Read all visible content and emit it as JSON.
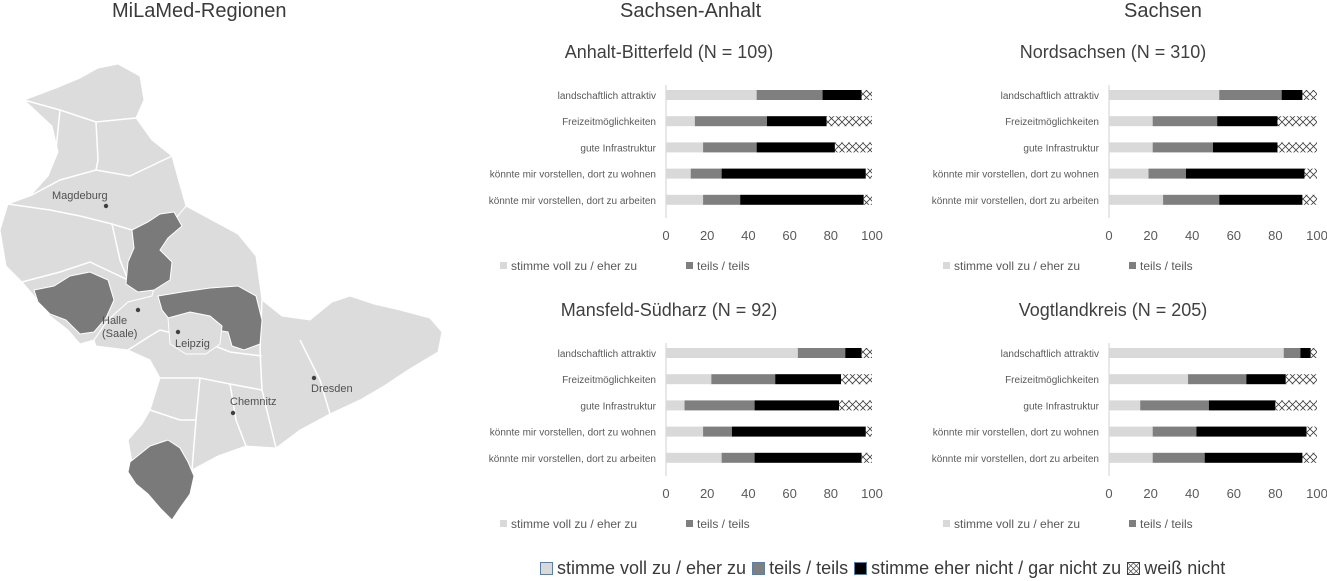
{
  "headings": {
    "map": "MiLaMed-Regionen",
    "sachsen_anhalt": "Sachsen-Anhalt",
    "sachsen": "Sachsen"
  },
  "map": {
    "cities": [
      "Magdeburg",
      "Halle\n(Saale)",
      "Leipzig",
      "Chemnitz",
      "Dresden"
    ],
    "colors": {
      "state": "#dcdcdc",
      "highlight": "#7a7a7a",
      "border": "#ffffff",
      "dot": "#404040"
    }
  },
  "legend": {
    "labels": [
      "stimme voll zu / eher zu",
      "teils / teils",
      "stimme eher nicht / gar nicht zu",
      "weiß nicht"
    ],
    "colors": [
      "#d9d9d9",
      "#7f7f7f",
      "#000000",
      "#ffffff"
    ]
  },
  "chart_data": [
    {
      "type": "bar",
      "orientation": "horizontal",
      "stacked": true,
      "title": "Anhalt-Bitterfeld (N = 109)",
      "categories": [
        "landschaftlich attraktiv",
        "Freizeitmöglichkeiten",
        "gute Infrastruktur",
        "könnte mir vorstellen, dort zu wohnen",
        "könnte mir vorstellen, dort zu arbeiten"
      ],
      "series": [
        {
          "name": "stimme voll zu / eher zu",
          "values": [
            44,
            14,
            18,
            12,
            18
          ]
        },
        {
          "name": "teils / teils",
          "values": [
            32,
            35,
            26,
            15,
            18
          ]
        },
        {
          "name": "stimme eher nicht / gar nicht zu",
          "values": [
            19,
            29,
            38,
            70,
            60
          ]
        },
        {
          "name": "weiß nicht",
          "values": [
            5,
            22,
            18,
            3,
            4
          ]
        }
      ],
      "xlim": [
        0,
        100
      ],
      "xticks": [
        0,
        20,
        40,
        60,
        80,
        100
      ],
      "legend_position": "bottom"
    },
    {
      "type": "bar",
      "orientation": "horizontal",
      "stacked": true,
      "title": "Nordsachsen (N = 310)",
      "categories": [
        "landschaftlich attraktiv",
        "Freizeitmöglichkeiten",
        "gute Infrastruktur",
        "könnte mir vorstellen, dort zu wohnen",
        "könnte mir vorstellen, dort zu arbeiten"
      ],
      "series": [
        {
          "name": "stimme voll zu / eher zu",
          "values": [
            53,
            21,
            21,
            19,
            26
          ]
        },
        {
          "name": "teils / teils",
          "values": [
            30,
            31,
            29,
            18,
            27
          ]
        },
        {
          "name": "stimme eher nicht / gar nicht zu",
          "values": [
            10,
            29,
            31,
            57,
            40
          ]
        },
        {
          "name": "weiß nicht",
          "values": [
            7,
            19,
            19,
            6,
            7
          ]
        }
      ],
      "xlim": [
        0,
        100
      ],
      "xticks": [
        0,
        20,
        40,
        60,
        80,
        100
      ],
      "legend_position": "bottom"
    },
    {
      "type": "bar",
      "orientation": "horizontal",
      "stacked": true,
      "title": "Mansfeld-Südharz (N = 92)",
      "categories": [
        "landschaftlich attraktiv",
        "Freizeitmöglichkeiten",
        "gute Infrastruktur",
        "könnte mir vorstellen, dort zu wohnen",
        "könnte mir vorstellen, dort zu arbeiten"
      ],
      "series": [
        {
          "name": "stimme voll zu / eher zu",
          "values": [
            64,
            22,
            9,
            18,
            27
          ]
        },
        {
          "name": "teils / teils",
          "values": [
            23,
            31,
            34,
            14,
            16
          ]
        },
        {
          "name": "stimme eher nicht / gar nicht zu",
          "values": [
            8,
            32,
            41,
            65,
            52
          ]
        },
        {
          "name": "weiß nicht",
          "values": [
            5,
            15,
            16,
            3,
            5
          ]
        }
      ],
      "xlim": [
        0,
        100
      ],
      "xticks": [
        0,
        20,
        40,
        60,
        80,
        100
      ],
      "legend_position": "bottom"
    },
    {
      "type": "bar",
      "orientation": "horizontal",
      "stacked": true,
      "title": "Vogtlandkreis (N = 205)",
      "categories": [
        "landschaftlich attraktiv",
        "Freizeitmöglichkeiten",
        "gute Infrastruktur",
        "könnte mir vorstellen, dort zu wohnen",
        "könnte mir vorstellen, dort zu arbeiten"
      ],
      "series": [
        {
          "name": "stimme voll zu / eher zu",
          "values": [
            84,
            38,
            15,
            21,
            21
          ]
        },
        {
          "name": "teils / teils",
          "values": [
            8,
            28,
            33,
            21,
            25
          ]
        },
        {
          "name": "stimme eher nicht / gar nicht zu",
          "values": [
            5,
            19,
            32,
            53,
            47
          ]
        },
        {
          "name": "weiß nicht",
          "values": [
            3,
            15,
            20,
            5,
            7
          ]
        }
      ],
      "xlim": [
        0,
        100
      ],
      "xticks": [
        0,
        20,
        40,
        60,
        80,
        100
      ],
      "legend_position": "bottom"
    }
  ]
}
